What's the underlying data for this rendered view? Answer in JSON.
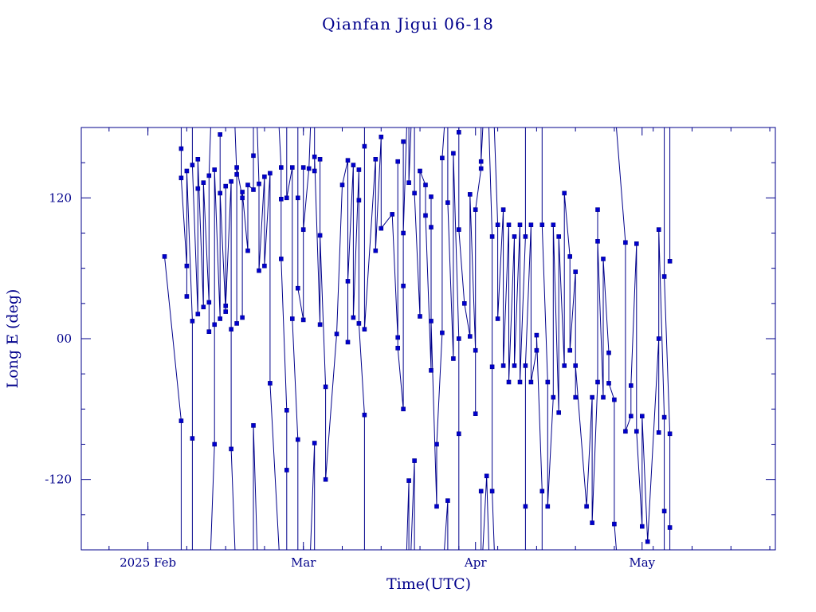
{
  "chart_data": {
    "type": "scatter",
    "title": "Qianfan Jigui 06-18",
    "xlabel": "Time(UTC)",
    "ylabel": "Long E (deg)",
    "x_axis": {
      "type": "date",
      "range": [
        "2025-01-20",
        "2025-05-25"
      ],
      "major_ticks": [
        {
          "date": "2025-02-01",
          "label": "2025 Feb"
        },
        {
          "date": "2025-03-01",
          "label": "Mar"
        },
        {
          "date": "2025-04-01",
          "label": "Apr"
        },
        {
          "date": "2025-05-01",
          "label": "May"
        }
      ]
    },
    "y_axis": {
      "range": [
        -180,
        180
      ],
      "major_ticks": [
        {
          "value": 120,
          "label": "120"
        },
        {
          "value": 0,
          "label": "00"
        },
        {
          "value": -120,
          "label": "-120"
        }
      ],
      "minor_step": 30
    },
    "grid": false,
    "colors": {
      "axes": "#00008b",
      "line": "#00008b",
      "marker": "#0000cd"
    },
    "series": [
      {
        "marker": "square",
        "points": [
          {
            "x": "2025-02-04",
            "y": 70
          },
          {
            "x": "2025-02-07",
            "y": -70
          },
          {
            "x": "2025-02-07",
            "y": 162
          },
          {
            "x": "2025-02-07",
            "y": 137
          },
          {
            "x": "2025-02-08",
            "y": 62
          },
          {
            "x": "2025-02-08",
            "y": 36
          },
          {
            "x": "2025-02-08",
            "y": 143
          },
          {
            "x": "2025-02-09",
            "y": 15
          },
          {
            "x": "2025-02-09",
            "y": -85
          },
          {
            "x": "2025-02-09",
            "y": 148
          },
          {
            "x": "2025-02-10",
            "y": 21
          },
          {
            "x": "2025-02-10",
            "y": 128
          },
          {
            "x": "2025-02-10",
            "y": 153
          },
          {
            "x": "2025-02-11",
            "y": 27
          },
          {
            "x": "2025-02-11",
            "y": 133
          },
          {
            "x": "2025-02-12",
            "y": 31
          },
          {
            "x": "2025-02-12",
            "y": 6
          },
          {
            "x": "2025-02-12",
            "y": 139
          },
          {
            "x": "2025-02-13",
            "y": -90
          },
          {
            "x": "2025-02-13",
            "y": 12
          },
          {
            "x": "2025-02-13",
            "y": 144
          },
          {
            "x": "2025-02-14",
            "y": 17
          },
          {
            "x": "2025-02-14",
            "y": 174
          },
          {
            "x": "2025-02-14",
            "y": 124
          },
          {
            "x": "2025-02-15",
            "y": 23
          },
          {
            "x": "2025-02-15",
            "y": 130
          },
          {
            "x": "2025-02-15",
            "y": 28
          },
          {
            "x": "2025-02-16",
            "y": 134
          },
          {
            "x": "2025-02-16",
            "y": 8
          },
          {
            "x": "2025-02-16",
            "y": -94
          },
          {
            "x": "2025-02-17",
            "y": 140
          },
          {
            "x": "2025-02-17",
            "y": 13
          },
          {
            "x": "2025-02-17",
            "y": 146
          },
          {
            "x": "2025-02-18",
            "y": 120
          },
          {
            "x": "2025-02-18",
            "y": 18
          },
          {
            "x": "2025-02-18",
            "y": 125
          },
          {
            "x": "2025-02-19",
            "y": 75
          },
          {
            "x": "2025-02-19",
            "y": 131
          },
          {
            "x": "2025-02-20",
            "y": 127
          },
          {
            "x": "2025-02-20",
            "y": 156
          },
          {
            "x": "2025-02-20",
            "y": -74
          },
          {
            "x": "2025-02-21",
            "y": 132
          },
          {
            "x": "2025-02-21",
            "y": 58
          },
          {
            "x": "2025-02-22",
            "y": 138
          },
          {
            "x": "2025-02-22",
            "y": 62
          },
          {
            "x": "2025-02-23",
            "y": 141
          },
          {
            "x": "2025-02-23",
            "y": -38
          },
          {
            "x": "2025-02-25",
            "y": 146
          },
          {
            "x": "2025-02-25",
            "y": 119
          },
          {
            "x": "2025-02-25",
            "y": 68
          },
          {
            "x": "2025-02-26",
            "y": -61
          },
          {
            "x": "2025-02-26",
            "y": -112
          },
          {
            "x": "2025-02-26",
            "y": 120
          },
          {
            "x": "2025-02-27",
            "y": 146
          },
          {
            "x": "2025-02-27",
            "y": 17
          },
          {
            "x": "2025-02-28",
            "y": -86
          },
          {
            "x": "2025-02-28",
            "y": 120
          },
          {
            "x": "2025-02-28",
            "y": 43
          },
          {
            "x": "2025-03-01",
            "y": 16
          },
          {
            "x": "2025-03-01",
            "y": 146
          },
          {
            "x": "2025-03-01",
            "y": 93
          },
          {
            "x": "2025-03-02",
            "y": 145
          },
          {
            "x": "2025-03-03",
            "y": -89
          },
          {
            "x": "2025-03-03",
            "y": 143
          },
          {
            "x": "2025-03-03",
            "y": 155
          },
          {
            "x": "2025-03-04",
            "y": 12
          },
          {
            "x": "2025-03-04",
            "y": 153
          },
          {
            "x": "2025-03-04",
            "y": 88
          },
          {
            "x": "2025-03-05",
            "y": -41
          },
          {
            "x": "2025-03-05",
            "y": -120
          },
          {
            "x": "2025-03-07",
            "y": 4
          },
          {
            "x": "2025-03-08",
            "y": 131
          },
          {
            "x": "2025-03-09",
            "y": 152
          },
          {
            "x": "2025-03-09",
            "y": -3
          },
          {
            "x": "2025-03-09",
            "y": 49
          },
          {
            "x": "2025-03-10",
            "y": 148
          },
          {
            "x": "2025-03-10",
            "y": 18
          },
          {
            "x": "2025-03-11",
            "y": 144
          },
          {
            "x": "2025-03-11",
            "y": 118
          },
          {
            "x": "2025-03-11",
            "y": 13
          },
          {
            "x": "2025-03-12",
            "y": -65
          },
          {
            "x": "2025-03-12",
            "y": 164
          },
          {
            "x": "2025-03-12",
            "y": 8
          },
          {
            "x": "2025-03-14",
            "y": 153
          },
          {
            "x": "2025-03-14",
            "y": 75
          },
          {
            "x": "2025-03-15",
            "y": 172
          },
          {
            "x": "2025-03-15",
            "y": 94
          },
          {
            "x": "2025-03-17",
            "y": 106
          },
          {
            "x": "2025-03-18",
            "y": 1
          },
          {
            "x": "2025-03-18",
            "y": 151
          },
          {
            "x": "2025-03-18",
            "y": -8
          },
          {
            "x": "2025-03-19",
            "y": -60
          },
          {
            "x": "2025-03-19",
            "y": 45
          },
          {
            "x": "2025-03-19",
            "y": 168
          },
          {
            "x": "2025-03-19",
            "y": 90
          },
          {
            "x": "2025-03-20",
            "y": -121
          },
          {
            "x": "2025-03-20",
            "y": 133
          },
          {
            "x": "2025-03-21",
            "y": -104
          },
          {
            "x": "2025-03-21",
            "y": 124
          },
          {
            "x": "2025-03-22",
            "y": 19
          },
          {
            "x": "2025-03-22",
            "y": 143
          },
          {
            "x": "2025-03-23",
            "y": 131
          },
          {
            "x": "2025-03-23",
            "y": 105
          },
          {
            "x": "2025-03-24",
            "y": -27
          },
          {
            "x": "2025-03-24",
            "y": 121
          },
          {
            "x": "2025-03-24",
            "y": 95
          },
          {
            "x": "2025-03-24",
            "y": 15
          },
          {
            "x": "2025-03-25",
            "y": -143
          },
          {
            "x": "2025-03-25",
            "y": -90
          },
          {
            "x": "2025-03-26",
            "y": 5
          },
          {
            "x": "2025-03-26",
            "y": 154
          },
          {
            "x": "2025-03-27",
            "y": -138
          },
          {
            "x": "2025-03-27",
            "y": 116
          },
          {
            "x": "2025-03-28",
            "y": -17
          },
          {
            "x": "2025-03-28",
            "y": 158
          },
          {
            "x": "2025-03-29",
            "y": 0
          },
          {
            "x": "2025-03-29",
            "y": -81
          },
          {
            "x": "2025-03-29",
            "y": 176
          },
          {
            "x": "2025-03-29",
            "y": 93
          },
          {
            "x": "2025-03-30",
            "y": 30
          },
          {
            "x": "2025-03-31",
            "y": 2
          },
          {
            "x": "2025-03-31",
            "y": 123
          },
          {
            "x": "2025-04-01",
            "y": -10
          },
          {
            "x": "2025-04-01",
            "y": -64
          },
          {
            "x": "2025-04-01",
            "y": 110
          },
          {
            "x": "2025-04-02",
            "y": 145
          },
          {
            "x": "2025-04-02",
            "y": -130
          },
          {
            "x": "2025-04-02",
            "y": 151
          },
          {
            "x": "2025-04-03",
            "y": -117
          },
          {
            "x": "2025-04-04",
            "y": 87
          },
          {
            "x": "2025-04-04",
            "y": -24
          },
          {
            "x": "2025-04-04",
            "y": -130
          },
          {
            "x": "2025-04-05",
            "y": 97
          },
          {
            "x": "2025-04-05",
            "y": 17
          },
          {
            "x": "2025-04-06",
            "y": 110
          },
          {
            "x": "2025-04-06",
            "y": -23
          },
          {
            "x": "2025-04-07",
            "y": 97
          },
          {
            "x": "2025-04-07",
            "y": -37
          },
          {
            "x": "2025-04-08",
            "y": 87
          },
          {
            "x": "2025-04-08",
            "y": -23
          },
          {
            "x": "2025-04-09",
            "y": 97
          },
          {
            "x": "2025-04-09",
            "y": -37
          },
          {
            "x": "2025-04-10",
            "y": 87
          },
          {
            "x": "2025-04-10",
            "y": -143
          },
          {
            "x": "2025-04-10",
            "y": -23
          },
          {
            "x": "2025-04-11",
            "y": 97
          },
          {
            "x": "2025-04-11",
            "y": -37
          },
          {
            "x": "2025-04-12",
            "y": -10
          },
          {
            "x": "2025-04-12",
            "y": 3
          },
          {
            "x": "2025-04-13",
            "y": -130
          },
          {
            "x": "2025-04-13",
            "y": 97
          },
          {
            "x": "2025-04-14",
            "y": -37
          },
          {
            "x": "2025-04-14",
            "y": -143
          },
          {
            "x": "2025-04-15",
            "y": -50
          },
          {
            "x": "2025-04-15",
            "y": 97
          },
          {
            "x": "2025-04-16",
            "y": -63
          },
          {
            "x": "2025-04-16",
            "y": 87
          },
          {
            "x": "2025-04-17",
            "y": -23
          },
          {
            "x": "2025-04-17",
            "y": 124
          },
          {
            "x": "2025-04-18",
            "y": 70
          },
          {
            "x": "2025-04-18",
            "y": -10
          },
          {
            "x": "2025-04-19",
            "y": 57
          },
          {
            "x": "2025-04-19",
            "y": -50
          },
          {
            "x": "2025-04-19",
            "y": -23
          },
          {
            "x": "2025-04-21",
            "y": -143
          },
          {
            "x": "2025-04-22",
            "y": -50
          },
          {
            "x": "2025-04-22",
            "y": -157
          },
          {
            "x": "2025-04-23",
            "y": -37
          },
          {
            "x": "2025-04-23",
            "y": 110
          },
          {
            "x": "2025-04-23",
            "y": 83
          },
          {
            "x": "2025-04-24",
            "y": -50
          },
          {
            "x": "2025-04-24",
            "y": 68
          },
          {
            "x": "2025-04-25",
            "y": -12
          },
          {
            "x": "2025-04-25",
            "y": -38
          },
          {
            "x": "2025-04-26",
            "y": -52
          },
          {
            "x": "2025-04-26",
            "y": -158
          },
          {
            "x": "2025-04-28",
            "y": 82
          },
          {
            "x": "2025-04-28",
            "y": -79
          },
          {
            "x": "2025-04-29",
            "y": -66
          },
          {
            "x": "2025-04-29",
            "y": -40
          },
          {
            "x": "2025-04-30",
            "y": 81
          },
          {
            "x": "2025-04-30",
            "y": -79
          },
          {
            "x": "2025-05-01",
            "y": -160
          },
          {
            "x": "2025-05-01",
            "y": -66
          },
          {
            "x": "2025-05-02",
            "y": -173
          },
          {
            "x": "2025-05-04",
            "y": 0
          },
          {
            "x": "2025-05-04",
            "y": -80
          },
          {
            "x": "2025-05-04",
            "y": 93
          },
          {
            "x": "2025-05-05",
            "y": -67
          },
          {
            "x": "2025-05-05",
            "y": -147
          },
          {
            "x": "2025-05-05",
            "y": 53
          },
          {
            "x": "2025-05-06",
            "y": -81
          },
          {
            "x": "2025-05-06",
            "y": -161
          },
          {
            "x": "2025-05-06",
            "y": 66
          }
        ]
      }
    ]
  }
}
